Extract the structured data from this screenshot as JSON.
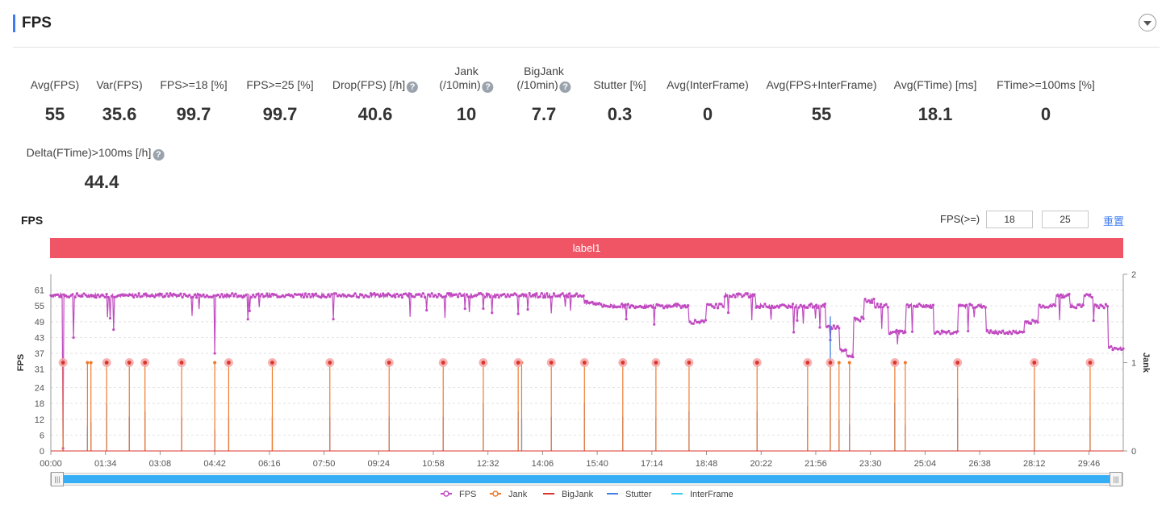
{
  "header": {
    "title": "FPS"
  },
  "metrics": [
    {
      "label": "Avg(FPS)",
      "value": "55"
    },
    {
      "label": "Var(FPS)",
      "value": "35.6"
    },
    {
      "label": "FPS>=18 [%]",
      "value": "99.7"
    },
    {
      "label": "FPS>=25 [%]",
      "value": "99.7"
    },
    {
      "label": "Drop(FPS) [/h]",
      "value": "40.6",
      "help": true
    },
    {
      "label": "Jank",
      "label2": "(/10min)",
      "value": "10",
      "help": true
    },
    {
      "label": "BigJank",
      "label2": "(/10min)",
      "value": "7.7",
      "help": true
    },
    {
      "label": "Stutter [%]",
      "value": "0.3"
    },
    {
      "label": "Avg(InterFrame)",
      "value": "0"
    },
    {
      "label": "Avg(FPS+InterFrame)",
      "value": "55"
    },
    {
      "label": "Avg(FTime) [ms]",
      "value": "18.1"
    },
    {
      "label": "FTime>=100ms [%]",
      "value": "0"
    },
    {
      "label": "Delta(FTime)>100ms [/h]",
      "value": "44.4",
      "help": true
    }
  ],
  "chart_section": {
    "title": "FPS",
    "threshold_label": "FPS(>=)",
    "threshold1": "18",
    "threshold2": "25",
    "reset_label": "重置",
    "band_label": "label1",
    "help_glyph": "?"
  },
  "chart_data": {
    "type": "line",
    "x_tick_labels": [
      "00:00",
      "01:34",
      "03:08",
      "04:42",
      "06:16",
      "07:50",
      "09:24",
      "10:58",
      "12:32",
      "14:06",
      "15:40",
      "17:14",
      "18:48",
      "20:22",
      "21:56",
      "23:30",
      "25:04",
      "26:38",
      "28:12",
      "29:46"
    ],
    "y_left": {
      "label": "FPS",
      "ticks": [
        0,
        6,
        12,
        18,
        24,
        31,
        37,
        43,
        49,
        55,
        61
      ],
      "range": [
        0,
        67
      ]
    },
    "y_right": {
      "label": "Jank",
      "ticks": [
        0,
        1,
        2
      ],
      "range": [
        0,
        2
      ]
    },
    "x_range_min": [
      0,
      30.75
    ],
    "fps_series": {
      "name": "FPS",
      "color": "#c14bc1",
      "segments": [
        {
          "from": 0.0,
          "to": 15.3,
          "level": 59
        },
        {
          "from": 15.3,
          "to": 15.8,
          "level": 56
        },
        {
          "from": 15.8,
          "to": 18.3,
          "level": 55
        },
        {
          "from": 18.3,
          "to": 18.8,
          "level": 49
        },
        {
          "from": 18.8,
          "to": 19.3,
          "level": 55
        },
        {
          "from": 19.3,
          "to": 20.2,
          "level": 59
        },
        {
          "from": 20.2,
          "to": 22.2,
          "level": 55
        },
        {
          "from": 22.2,
          "to": 22.6,
          "level": 47
        },
        {
          "from": 22.6,
          "to": 22.8,
          "level": 38
        },
        {
          "from": 22.8,
          "to": 23.0,
          "level": 36
        },
        {
          "from": 23.0,
          "to": 23.3,
          "level": 50
        },
        {
          "from": 23.3,
          "to": 23.6,
          "level": 57
        },
        {
          "from": 23.6,
          "to": 24.0,
          "level": 55
        },
        {
          "from": 24.0,
          "to": 24.5,
          "level": 45
        },
        {
          "from": 24.5,
          "to": 25.3,
          "level": 55
        },
        {
          "from": 25.3,
          "to": 26.0,
          "level": 45
        },
        {
          "from": 26.0,
          "to": 26.8,
          "level": 55
        },
        {
          "from": 26.8,
          "to": 27.9,
          "level": 45
        },
        {
          "from": 27.9,
          "to": 28.3,
          "level": 49
        },
        {
          "from": 28.3,
          "to": 28.8,
          "level": 55
        },
        {
          "from": 28.8,
          "to": 29.2,
          "level": 59
        },
        {
          "from": 29.2,
          "to": 29.6,
          "level": 55
        },
        {
          "from": 29.6,
          "to": 29.9,
          "level": 59
        },
        {
          "from": 29.9,
          "to": 30.3,
          "level": 55
        },
        {
          "from": 30.3,
          "to": 30.75,
          "level": 39
        }
      ],
      "dips": [
        {
          "t": 0.35,
          "fps": 1
        },
        {
          "t": 0.65,
          "fps": 43
        },
        {
          "t": 1.8,
          "fps": 46
        },
        {
          "t": 4.7,
          "fps": 37
        },
        {
          "t": 8.1,
          "fps": 50
        },
        {
          "t": 12.4,
          "fps": 54
        },
        {
          "t": 13.4,
          "fps": 52
        },
        {
          "t": 16.5,
          "fps": 50
        },
        {
          "t": 17.3,
          "fps": 48
        },
        {
          "t": 21.3,
          "fps": 45
        }
      ]
    },
    "jank_events_min": [
      0.35,
      1.05,
      1.15,
      1.6,
      2.25,
      2.7,
      3.75,
      4.7,
      5.1,
      6.35,
      8.0,
      9.7,
      11.25,
      12.4,
      13.4,
      13.5,
      14.35,
      15.3,
      16.4,
      17.35,
      18.3,
      20.25,
      21.7,
      22.35,
      22.6,
      22.9,
      24.2,
      24.5,
      26.0,
      28.2,
      29.8
    ],
    "stutter_events": [
      {
        "t": 0.35,
        "v": 13
      },
      {
        "t": 1.05,
        "v": 9
      },
      {
        "t": 1.15,
        "v": 11
      },
      {
        "t": 1.6,
        "v": 18
      },
      {
        "t": 2.25,
        "v": 13
      },
      {
        "t": 2.7,
        "v": 15
      },
      {
        "t": 3.75,
        "v": 13
      },
      {
        "t": 4.7,
        "v": 8
      },
      {
        "t": 5.1,
        "v": 13
      },
      {
        "t": 6.35,
        "v": 13
      },
      {
        "t": 8.0,
        "v": 13
      },
      {
        "t": 9.7,
        "v": 13
      },
      {
        "t": 11.25,
        "v": 13
      },
      {
        "t": 12.4,
        "v": 18
      },
      {
        "t": 13.4,
        "v": 15
      },
      {
        "t": 13.5,
        "v": 12
      },
      {
        "t": 14.35,
        "v": 13
      },
      {
        "t": 15.3,
        "v": 18
      },
      {
        "t": 16.4,
        "v": 13
      },
      {
        "t": 17.35,
        "v": 13
      },
      {
        "t": 18.3,
        "v": 15
      },
      {
        "t": 20.25,
        "v": 15
      },
      {
        "t": 21.7,
        "v": 17
      },
      {
        "t": 22.35,
        "v": 51
      },
      {
        "t": 22.6,
        "v": 12
      },
      {
        "t": 22.9,
        "v": 10
      },
      {
        "t": 24.2,
        "v": 18
      },
      {
        "t": 24.5,
        "v": 10
      },
      {
        "t": 26.0,
        "v": 20
      },
      {
        "t": 28.2,
        "v": 23
      },
      {
        "t": 29.8,
        "v": 13
      }
    ],
    "big_jank_events_min": [
      0.35,
      1.6,
      2.25,
      2.7,
      3.75,
      5.1,
      6.35,
      8.0,
      9.7,
      11.25,
      12.4,
      13.4,
      14.35,
      15.3,
      16.4,
      17.35,
      18.3,
      20.25,
      21.7,
      22.35,
      24.2,
      26.0,
      28.2,
      29.8
    ],
    "legend": [
      {
        "name": "FPS",
        "color": "#c14bc1",
        "marker": true
      },
      {
        "name": "Jank",
        "color": "#f07a2c",
        "marker": true
      },
      {
        "name": "BigJank",
        "color": "#d9352c",
        "marker": false
      },
      {
        "name": "Stutter",
        "color": "#3f80e8",
        "marker": false
      },
      {
        "name": "InterFrame",
        "color": "#3cc7ee",
        "marker": false
      }
    ],
    "grid": "horizontal-dashed",
    "legend_position": "bottom-center"
  }
}
